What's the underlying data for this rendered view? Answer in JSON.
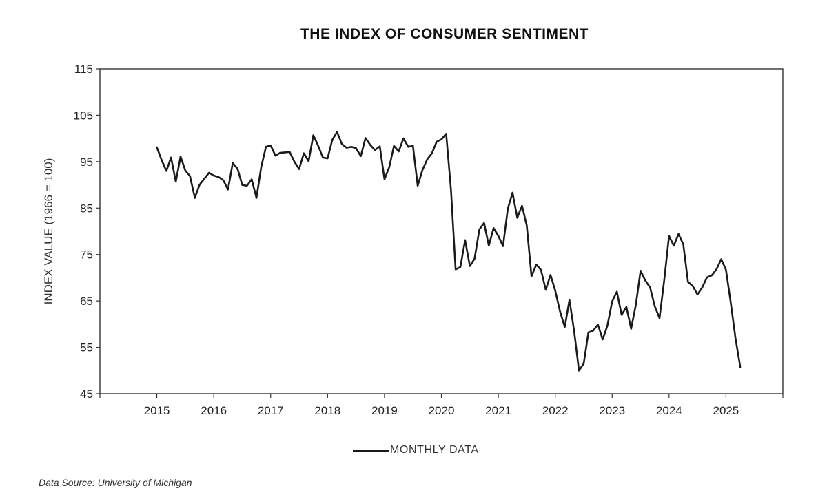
{
  "chart_data": {
    "type": "line",
    "title": "THE INDEX OF CONSUMER SENTIMENT",
    "ylabel": "INDEX VALUE (1966 = 100)",
    "xlabel": "",
    "ylim": [
      45,
      115
    ],
    "yticks": [
      "45",
      "55",
      "65",
      "75",
      "85",
      "95",
      "105",
      "115"
    ],
    "xlim": [
      2014,
      2026
    ],
    "xtick_labels": [
      "2015",
      "2016",
      "2017",
      "2018",
      "2019",
      "2020",
      "2021",
      "2022",
      "2023",
      "2024",
      "2025"
    ],
    "grid": false,
    "legend_position": "bottom-center",
    "series": [
      {
        "name": "MONTHLY DATA",
        "color": "#1a1a1a",
        "points": [
          [
            2015.0,
            98.1
          ],
          [
            2015.083,
            95.4
          ],
          [
            2015.167,
            93.0
          ],
          [
            2015.25,
            95.9
          ],
          [
            2015.333,
            90.7
          ],
          [
            2015.417,
            96.1
          ],
          [
            2015.5,
            93.1
          ],
          [
            2015.583,
            91.9
          ],
          [
            2015.667,
            87.2
          ],
          [
            2015.75,
            90.0
          ],
          [
            2015.833,
            91.3
          ],
          [
            2015.917,
            92.6
          ],
          [
            2016.0,
            92.0
          ],
          [
            2016.083,
            91.7
          ],
          [
            2016.167,
            91.0
          ],
          [
            2016.25,
            89.0
          ],
          [
            2016.333,
            94.7
          ],
          [
            2016.417,
            93.5
          ],
          [
            2016.5,
            90.0
          ],
          [
            2016.583,
            89.8
          ],
          [
            2016.667,
            91.2
          ],
          [
            2016.75,
            87.2
          ],
          [
            2016.833,
            93.8
          ],
          [
            2016.917,
            98.2
          ],
          [
            2017.0,
            98.5
          ],
          [
            2017.083,
            96.3
          ],
          [
            2017.167,
            96.9
          ],
          [
            2017.25,
            97.0
          ],
          [
            2017.333,
            97.1
          ],
          [
            2017.417,
            95.0
          ],
          [
            2017.5,
            93.4
          ],
          [
            2017.583,
            96.8
          ],
          [
            2017.667,
            95.1
          ],
          [
            2017.75,
            100.7
          ],
          [
            2017.833,
            98.5
          ],
          [
            2017.917,
            95.9
          ],
          [
            2018.0,
            95.7
          ],
          [
            2018.083,
            99.7
          ],
          [
            2018.167,
            101.4
          ],
          [
            2018.25,
            98.8
          ],
          [
            2018.333,
            98.0
          ],
          [
            2018.417,
            98.2
          ],
          [
            2018.5,
            97.9
          ],
          [
            2018.583,
            96.2
          ],
          [
            2018.667,
            100.1
          ],
          [
            2018.75,
            98.6
          ],
          [
            2018.833,
            97.5
          ],
          [
            2018.917,
            98.3
          ],
          [
            2019.0,
            91.2
          ],
          [
            2019.083,
            93.8
          ],
          [
            2019.167,
            98.4
          ],
          [
            2019.25,
            97.2
          ],
          [
            2019.333,
            100.0
          ],
          [
            2019.417,
            98.2
          ],
          [
            2019.5,
            98.4
          ],
          [
            2019.583,
            89.8
          ],
          [
            2019.667,
            93.2
          ],
          [
            2019.75,
            95.5
          ],
          [
            2019.833,
            96.8
          ],
          [
            2019.917,
            99.3
          ],
          [
            2020.0,
            99.8
          ],
          [
            2020.083,
            101.0
          ],
          [
            2020.167,
            89.1
          ],
          [
            2020.25,
            71.8
          ],
          [
            2020.333,
            72.3
          ],
          [
            2020.417,
            78.1
          ],
          [
            2020.5,
            72.5
          ],
          [
            2020.583,
            74.1
          ],
          [
            2020.667,
            80.4
          ],
          [
            2020.75,
            81.8
          ],
          [
            2020.833,
            76.9
          ],
          [
            2020.917,
            80.7
          ],
          [
            2021.0,
            79.0
          ],
          [
            2021.083,
            76.8
          ],
          [
            2021.167,
            84.9
          ],
          [
            2021.25,
            88.3
          ],
          [
            2021.333,
            82.9
          ],
          [
            2021.417,
            85.5
          ],
          [
            2021.5,
            81.2
          ],
          [
            2021.583,
            70.3
          ],
          [
            2021.667,
            72.8
          ],
          [
            2021.75,
            71.7
          ],
          [
            2021.833,
            67.4
          ],
          [
            2021.917,
            70.6
          ],
          [
            2022.0,
            67.2
          ],
          [
            2022.083,
            62.8
          ],
          [
            2022.167,
            59.4
          ],
          [
            2022.25,
            65.2
          ],
          [
            2022.333,
            58.4
          ],
          [
            2022.417,
            50.0
          ],
          [
            2022.5,
            51.5
          ],
          [
            2022.583,
            58.2
          ],
          [
            2022.667,
            58.6
          ],
          [
            2022.75,
            59.9
          ],
          [
            2022.833,
            56.7
          ],
          [
            2022.917,
            59.7
          ],
          [
            2023.0,
            64.9
          ],
          [
            2023.083,
            67.0
          ],
          [
            2023.167,
            62.0
          ],
          [
            2023.25,
            63.7
          ],
          [
            2023.333,
            59.0
          ],
          [
            2023.417,
            64.2
          ],
          [
            2023.5,
            71.5
          ],
          [
            2023.583,
            69.4
          ],
          [
            2023.667,
            67.9
          ],
          [
            2023.75,
            63.8
          ],
          [
            2023.833,
            61.3
          ],
          [
            2023.917,
            69.7
          ],
          [
            2024.0,
            79.0
          ],
          [
            2024.083,
            76.9
          ],
          [
            2024.167,
            79.4
          ],
          [
            2024.25,
            77.2
          ],
          [
            2024.333,
            69.1
          ],
          [
            2024.417,
            68.2
          ],
          [
            2024.5,
            66.4
          ],
          [
            2024.583,
            67.9
          ],
          [
            2024.667,
            70.1
          ],
          [
            2024.75,
            70.5
          ],
          [
            2024.833,
            71.8
          ],
          [
            2024.917,
            74.0
          ],
          [
            2025.0,
            71.7
          ],
          [
            2025.083,
            64.7
          ],
          [
            2025.167,
            57.0
          ],
          [
            2025.25,
            50.8
          ]
        ]
      }
    ]
  },
  "footer": {
    "source": "Data Source:  University of Michigan"
  }
}
